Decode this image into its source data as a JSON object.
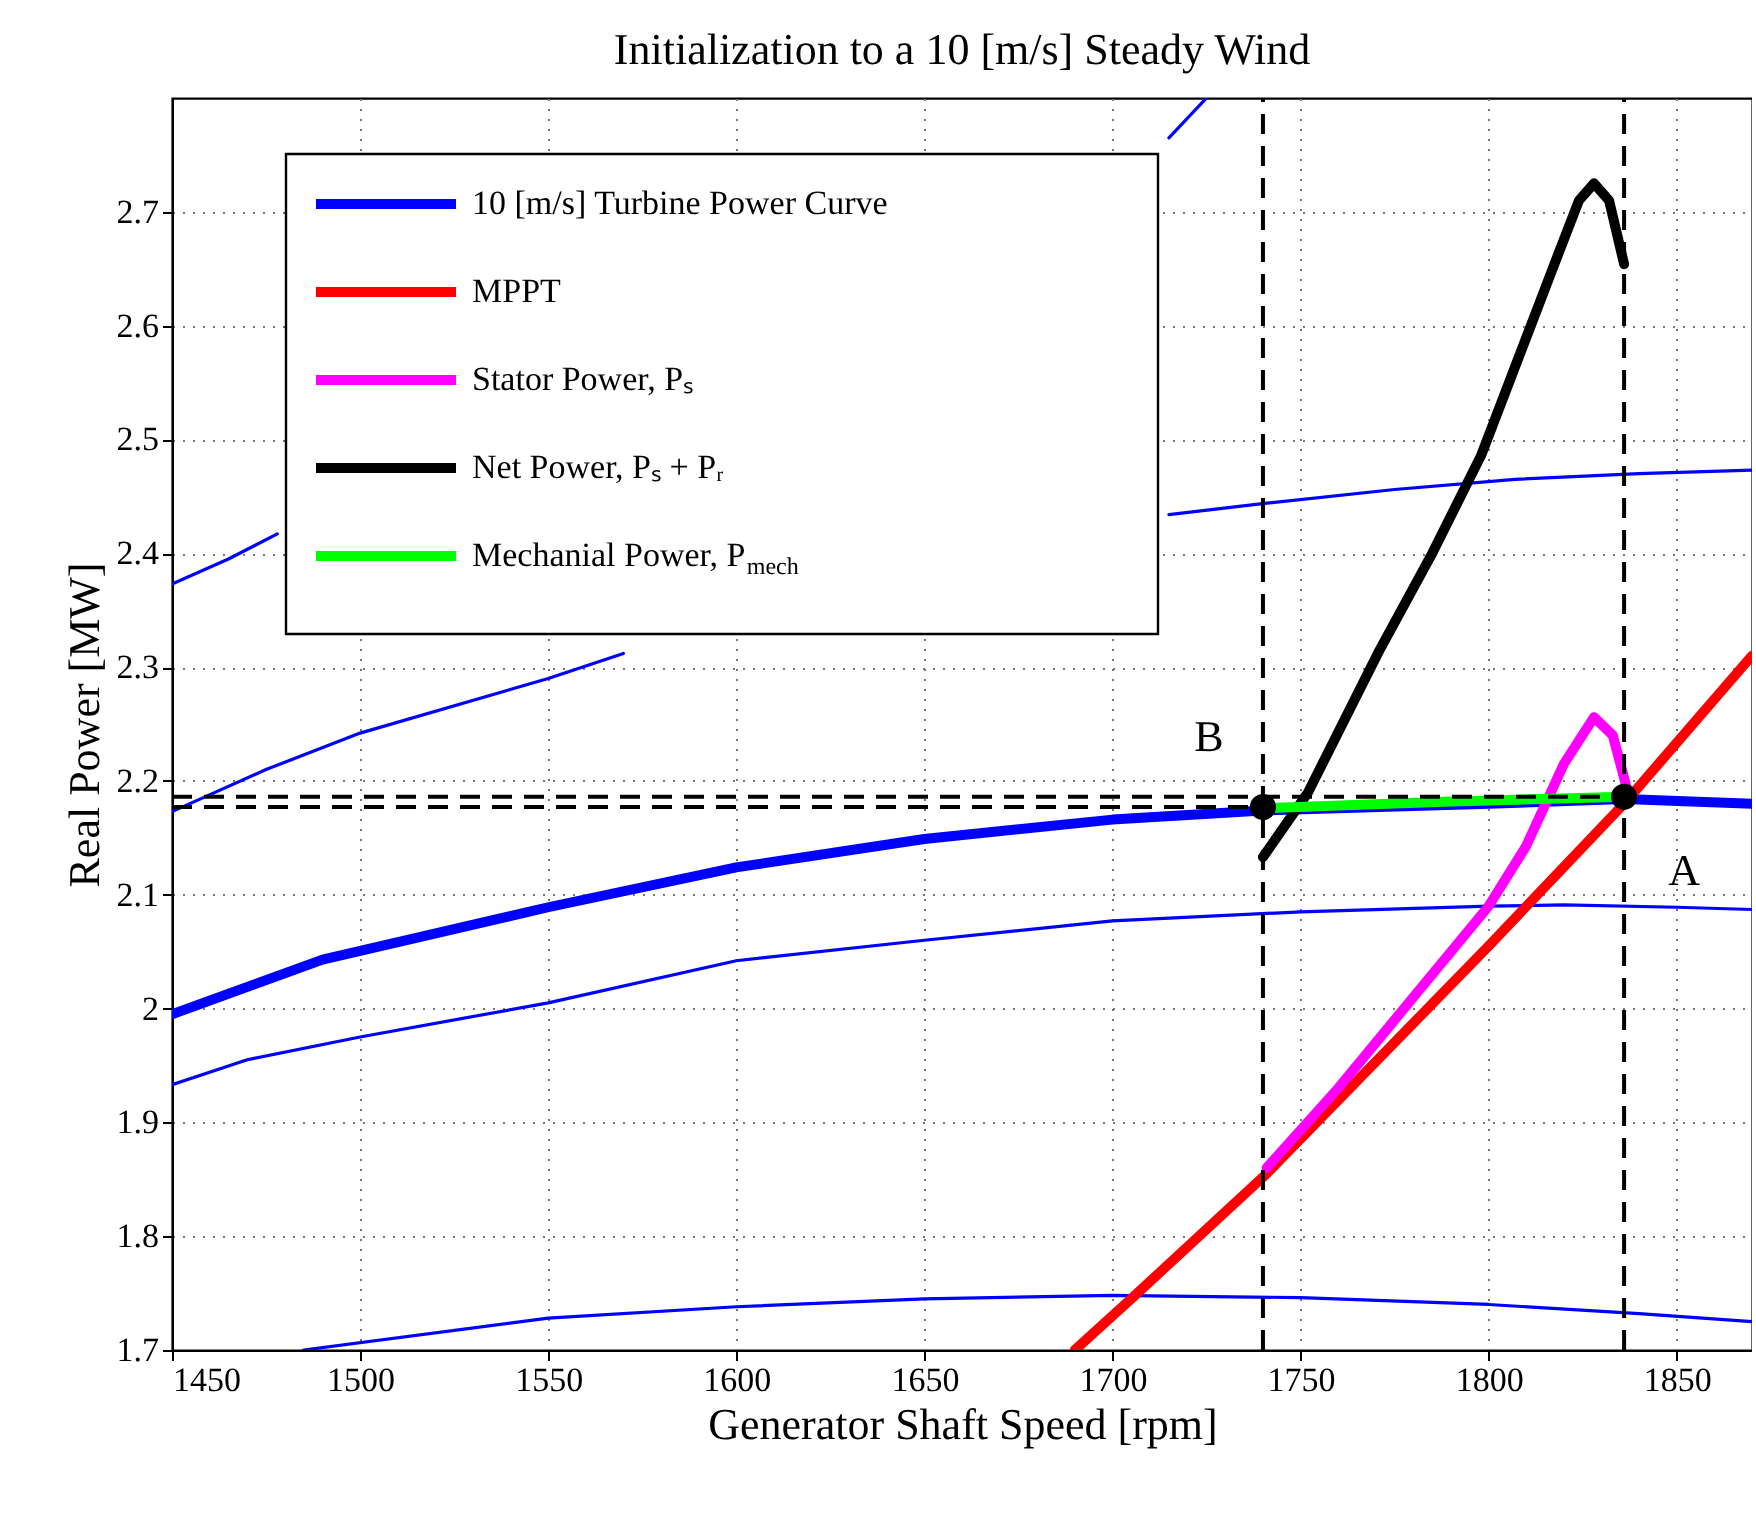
{
  "chart_data": {
    "type": "line",
    "title": "Initialization to a 10 [m/s] Steady Wind",
    "xlabel": "Generator Shaft Speed [rpm]",
    "ylabel": "Real Power [MW]",
    "xlim": [
      1450,
      1870
    ],
    "xticks": [
      1450,
      1500,
      1550,
      1600,
      1650,
      1700,
      1750,
      1800,
      1850
    ],
    "ylim": [
      1.7,
      2.8
    ],
    "yticks": [
      1.7,
      1.8,
      1.9,
      2,
      2.1,
      2.2,
      2.3,
      2.4,
      2.5,
      2.6,
      2.7
    ],
    "grid": true,
    "legend": "top left",
    "marker": "none",
    "series": [
      {
        "color": "#0000ff",
        "x": [
          1450,
          1465,
          1478
        ],
        "values": [
          2.373,
          2.395,
          2.417
        ]
      },
      {
        "color": "#0000ff",
        "x": [
          1715,
          1725
        ],
        "values": [
          2.765,
          2.8
        ]
      },
      {
        "color": "#0000ff",
        "x": [
          1450,
          1475,
          1500,
          1550,
          1570
        ],
        "values": [
          2.173,
          2.21,
          2.242,
          2.29,
          2.312
        ]
      },
      {
        "color": "#0000ff",
        "x": [
          1715,
          1741,
          1775,
          1807,
          1840,
          1870
        ],
        "values": [
          2.434,
          2.444,
          2.456,
          2.465,
          2.47,
          2.473
        ]
      },
      {
        "color": "#0000ff",
        "x": [
          1450,
          1470,
          1500,
          1550,
          1600,
          1650,
          1700,
          1750,
          1800,
          1820,
          1850,
          1870
        ],
        "values": [
          1.933,
          1.955,
          1.975,
          2.005,
          2.042,
          2.06,
          2.077,
          2.085,
          2.09,
          2.091,
          2.089,
          2.087
        ]
      },
      {
        "color": "#0000ff",
        "x": [
          1485,
          1550,
          1600,
          1650,
          1700,
          1750,
          1800,
          1840,
          1870
        ],
        "values": [
          1.7,
          1.728,
          1.738,
          1.745,
          1.748,
          1.746,
          1.74,
          1.732,
          1.725
        ]
      },
      {
        "name": "10 [m/s] Turbine Power Curve",
        "color": "#0000ff",
        "x": [
          1450,
          1490,
          1550,
          1600,
          1650,
          1700,
          1740,
          1800,
          1836,
          1870
        ],
        "values": [
          1.995,
          2.043,
          2.089,
          2.124,
          2.149,
          2.166,
          2.174,
          2.18,
          2.184,
          2.18
        ]
      },
      {
        "name": "MPPT",
        "color": "#ff0000",
        "x": [
          1690,
          1705,
          1741,
          1800,
          1836,
          1870
        ],
        "values": [
          1.7,
          1.745,
          1.855,
          2.055,
          2.18,
          2.31
        ]
      },
      {
        "name": "Stator Power, Pₛ",
        "color": "#ff00ff",
        "x": [
          1741,
          1760,
          1780,
          1800,
          1810,
          1820,
          1828,
          1833,
          1837
        ],
        "values": [
          1.86,
          1.93,
          2.01,
          2.09,
          2.143,
          2.215,
          2.256,
          2.24,
          2.19
        ]
      },
      {
        "name": "Net Power, Pₛ + Pᵣ",
        "color": "#000000",
        "x": [
          1740,
          1752,
          1771,
          1785,
          1798,
          1817,
          1824,
          1828,
          1832,
          1836
        ],
        "values": [
          2.133,
          2.19,
          2.315,
          2.4,
          2.486,
          2.65,
          2.71,
          2.725,
          2.71,
          2.654
        ]
      },
      {
        "name": "Mechanial Power, P$_{mech}$",
        "color": "#00ff00",
        "x": [
          1741,
          1790,
          1836
        ],
        "values": [
          2.176,
          2.182,
          2.186
        ]
      },
      {
        "color": "#000000",
        "line_style": "dashed",
        "x": [
          1450,
          1740
        ],
        "values": [
          2.177,
          2.177
        ]
      },
      {
        "color": "#000000",
        "line_style": "dashed",
        "x": [
          1450,
          1836
        ],
        "values": [
          2.186,
          2.186
        ]
      },
      {
        "color": "#000000",
        "line_style": "dashed",
        "x": [
          1740,
          1740
        ],
        "values": [
          1.7,
          2.8
        ]
      },
      {
        "color": "#000000",
        "line_style": "dashed",
        "x": [
          1836,
          1836
        ],
        "values": [
          1.7,
          2.8
        ]
      },
      {
        "type": "scatter",
        "color": "#000000",
        "marker": "circle",
        "x": [
          1740,
          1836
        ],
        "values": [
          2.177,
          2.186
        ]
      }
    ],
    "annotations": [
      {
        "text": "B",
        "x": 1740,
        "y": 2.177
      },
      {
        "text": "A",
        "x": 1836,
        "y": 2.186
      }
    ]
  }
}
